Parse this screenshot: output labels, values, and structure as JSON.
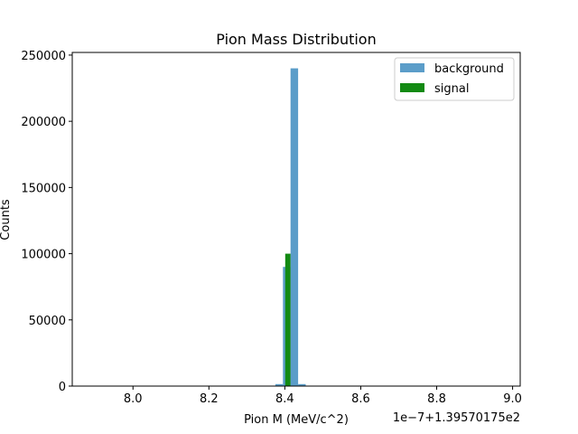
{
  "chart_data": {
    "type": "bar",
    "title": "Pion Mass Distribution",
    "xlabel": "Pion M (MeV/c^2)",
    "ylabel": "Counts",
    "x_offset_label": "1e−7+1.39570175e2",
    "xlim": [
      7.84,
      9.02
    ],
    "ylim": [
      0,
      252000
    ],
    "x_ticks": [
      8.0,
      8.2,
      8.4,
      8.6,
      8.8,
      9.0
    ],
    "x_tick_labels": [
      "8.0",
      "8.2",
      "8.4",
      "8.6",
      "8.8",
      "9.0"
    ],
    "y_ticks": [
      0,
      50000,
      100000,
      150000,
      200000,
      250000
    ],
    "y_tick_labels": [
      "0",
      "50000",
      "100000",
      "150000",
      "200000",
      "250000"
    ],
    "legend_position": "top-right",
    "series": [
      {
        "name": "background",
        "color": "#5b9dc9",
        "bins": [
          {
            "x0": 8.375,
            "x1": 8.395,
            "value": 1500
          },
          {
            "x0": 8.395,
            "x1": 8.415,
            "value": 90000
          },
          {
            "x0": 8.415,
            "x1": 8.435,
            "value": 240000
          },
          {
            "x0": 8.435,
            "x1": 8.455,
            "value": 1500
          }
        ]
      },
      {
        "name": "signal",
        "color": "#138a13",
        "bins": [
          {
            "x0": 8.401,
            "x1": 8.415,
            "value": 100000
          }
        ]
      }
    ]
  }
}
